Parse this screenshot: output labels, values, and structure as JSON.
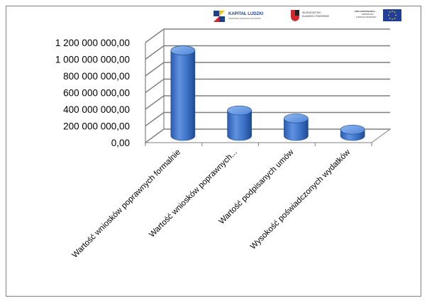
{
  "logos": {
    "kapital": {
      "title": "KAPITAŁ LUDZKI",
      "subtitle": "NARODOWA STRATEGIA SPÓJNOŚCI"
    },
    "region": {
      "line1": "WOJEWÓDZTWO",
      "line2": "KUJAWSKO-POMORSKIE"
    },
    "eu": {
      "line1": "UNIA EUROPEJSKA",
      "line2": "EUROPEJSKI",
      "line3": "FUNDUSZ SPOŁECZNY"
    }
  },
  "colors": {
    "bar_front": "#3a6fc4",
    "bar_dark": "#1f4a92",
    "bar_light": "#7aa8ea",
    "grid": "#7f7f7f",
    "axis_text": "#000000"
  },
  "chart_data": {
    "type": "bar",
    "style": "3d-cylinder",
    "categories": [
      "Wartość wniosków poprawnych formalnie",
      "Wartość wniosków poprawnych...",
      "Wartość podpisanych umów",
      "Wysokość poświadczonych wydatków"
    ],
    "values": [
      1025000000,
      305000000,
      210000000,
      75000000
    ],
    "ylim": [
      0,
      1200000000
    ],
    "yticks": [
      {
        "value": 0,
        "label": "0,00"
      },
      {
        "value": 200000000,
        "label": "200 000 000,00"
      },
      {
        "value": 400000000,
        "label": "400 000 000,00"
      },
      {
        "value": 600000000,
        "label": "600 000 000,00"
      },
      {
        "value": 800000000,
        "label": "800 000 000,00"
      },
      {
        "value": 1000000000,
        "label": "1 000 000 000,00"
      },
      {
        "value": 1200000000,
        "label": "1 200 000 000,00"
      }
    ],
    "grid": true,
    "legend": "none"
  }
}
